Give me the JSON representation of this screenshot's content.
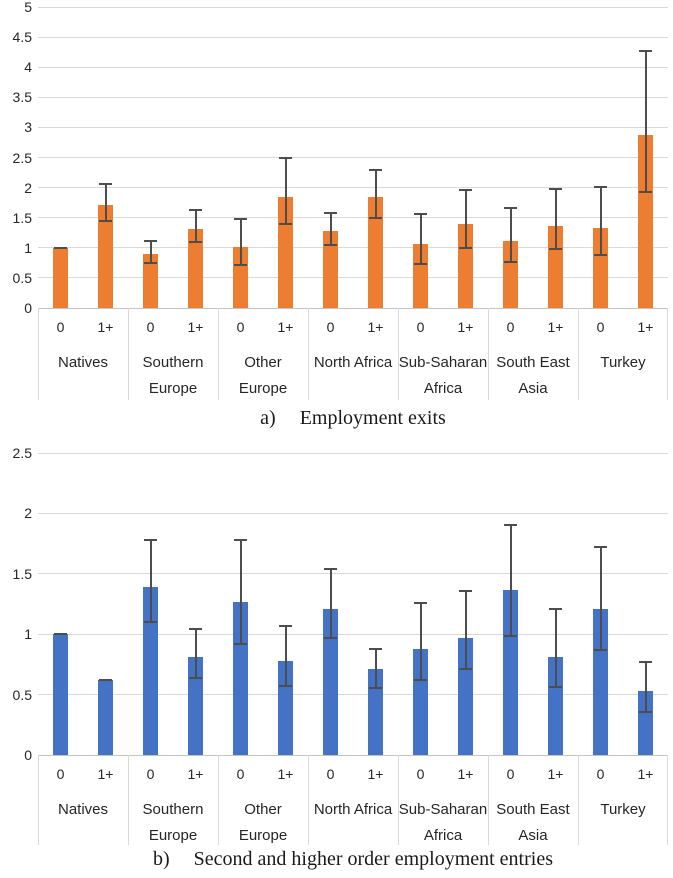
{
  "chart_data": [
    {
      "id": "exits",
      "type": "bar",
      "caption_prefix": "a)",
      "title": "Employment exits",
      "bar_color": "#ED7D31",
      "error_bar_color": "#4D4D4D",
      "gridline_color": "#D9D9D9",
      "grid": true,
      "legend": "none",
      "ylim": [
        0,
        5
      ],
      "yticks": [
        0,
        0.5,
        1,
        1.5,
        2,
        2.5,
        3,
        3.5,
        4,
        4.5,
        5
      ],
      "categories": [
        "Natives",
        "Southern Europe",
        "Other Europe",
        "North Africa",
        "Sub-Saharan Africa",
        "South East Asia",
        "Turkey"
      ],
      "category_lines": [
        [
          "Natives"
        ],
        [
          "Southern",
          "Europe"
        ],
        [
          "Other",
          "Europe"
        ],
        [
          "North Africa"
        ],
        [
          "Sub-Saharan",
          "Africa"
        ],
        [
          "South East",
          "Asia"
        ],
        [
          "Turkey"
        ]
      ],
      "sub_labels": [
        "0",
        "1+"
      ],
      "series": [
        {
          "name": "0",
          "values": [
            1.0,
            0.9,
            1.02,
            1.28,
            1.06,
            1.12,
            1.33
          ],
          "ci_low": [
            0.99,
            0.73,
            0.7,
            1.03,
            0.72,
            0.74,
            0.87
          ],
          "ci_high": [
            1.01,
            1.13,
            1.5,
            1.6,
            1.58,
            1.68,
            2.03
          ]
        },
        {
          "name": "1+",
          "values": [
            1.72,
            1.32,
            1.85,
            1.85,
            1.39,
            1.37,
            2.87
          ],
          "ci_low": [
            1.43,
            1.08,
            1.37,
            1.48,
            0.98,
            0.96,
            1.91
          ],
          "ci_high": [
            2.07,
            1.64,
            2.51,
            2.31,
            1.97,
            2.0,
            4.29
          ]
        }
      ]
    },
    {
      "id": "entries",
      "type": "bar",
      "caption_prefix": "b)",
      "title": "Second and higher order employment entries",
      "bar_color": "#4472C4",
      "error_bar_color": "#4D4D4D",
      "gridline_color": "#D9D9D9",
      "grid": true,
      "legend": "none",
      "ylim": [
        0,
        2.5
      ],
      "yticks": [
        0,
        0.5,
        1,
        1.5,
        2,
        2.5
      ],
      "categories": [
        "Natives",
        "Southern Europe",
        "Other Europe",
        "North Africa",
        "Sub-Saharan Africa",
        "South East Asia",
        "Turkey"
      ],
      "category_lines": [
        [
          "Natives"
        ],
        [
          "Southern",
          "Europe"
        ],
        [
          "Other",
          "Europe"
        ],
        [
          "North Africa"
        ],
        [
          "Sub-Saharan",
          "Africa"
        ],
        [
          "South East",
          "Asia"
        ],
        [
          "Turkey"
        ]
      ],
      "sub_labels": [
        "0",
        "1+"
      ],
      "series": [
        {
          "name": "0",
          "values": [
            1.0,
            1.39,
            1.27,
            1.21,
            0.88,
            1.37,
            1.21
          ],
          "ci_low": [
            0.99,
            1.09,
            0.91,
            0.96,
            0.61,
            0.98,
            0.86
          ],
          "ci_high": [
            1.01,
            1.79,
            1.79,
            1.55,
            1.27,
            1.91,
            1.73
          ]
        },
        {
          "name": "1+",
          "values": [
            0.62,
            0.81,
            0.78,
            0.71,
            0.97,
            0.81,
            0.53
          ],
          "ci_low": [
            0.61,
            0.63,
            0.56,
            0.55,
            0.7,
            0.55,
            0.35
          ],
          "ci_high": [
            0.63,
            1.05,
            1.08,
            0.89,
            1.37,
            1.22,
            0.78
          ]
        }
      ]
    }
  ]
}
